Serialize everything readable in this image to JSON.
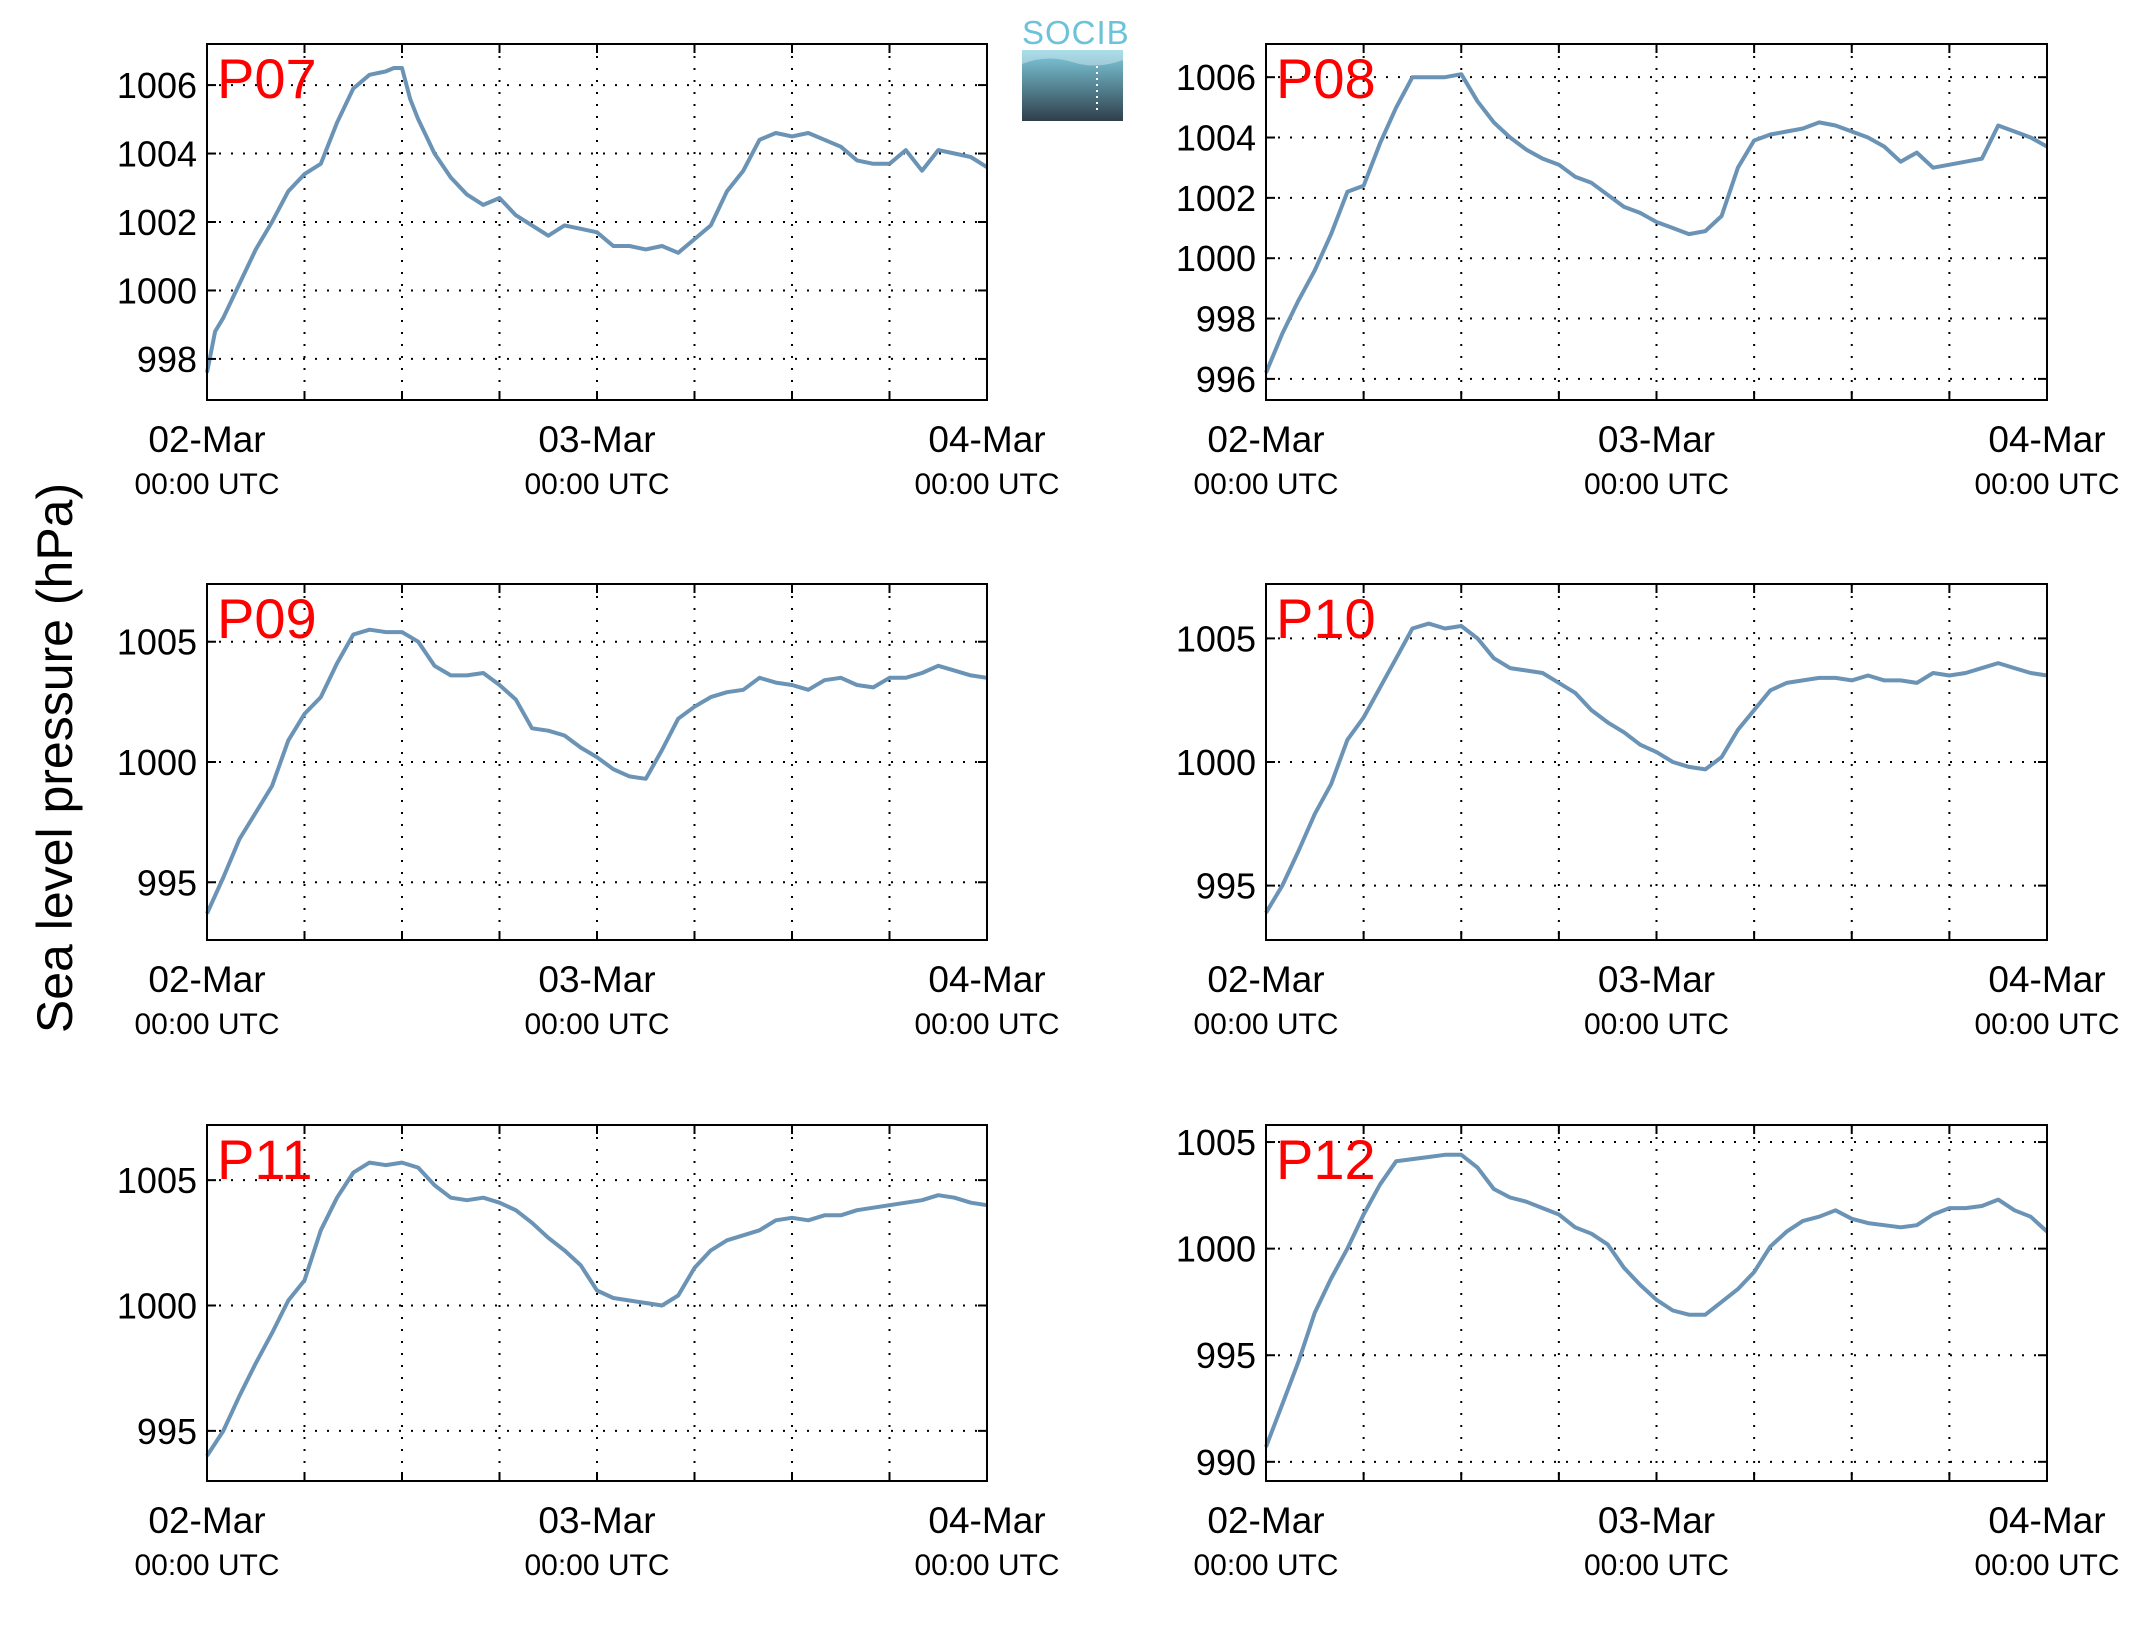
{
  "figure": {
    "ylabel": "Sea level pressure (hPa)",
    "line_color": "#6a93b5",
    "station_label_color": "#ff0000",
    "logo": {
      "text": "SOCIB",
      "text_color": "#6cc3d9",
      "gradient_top": "#7fcde0",
      "gradient_bottom": "#2f3f4a"
    }
  },
  "chart_data": [
    {
      "type": "line",
      "title": "P07",
      "x_ticks": [
        {
          "date": "02-Mar",
          "time": "00:00 UTC"
        },
        {
          "date": "03-Mar",
          "time": "00:00 UTC"
        },
        {
          "date": "04-Mar",
          "time": "00:00 UTC"
        }
      ],
      "xlim_hours": [
        0,
        48
      ],
      "x_grid_hours": [
        6,
        12,
        18,
        24,
        30,
        36,
        42
      ],
      "ylim": [
        996.8,
        1007.2
      ],
      "yticks": [
        998,
        1000,
        1002,
        1004,
        1006
      ],
      "grid": true,
      "series": [
        {
          "x": [
            0,
            0.5,
            1,
            2,
            3,
            4,
            5,
            6,
            7,
            8,
            9,
            10,
            11,
            11.5,
            12,
            12.5,
            13,
            13.5,
            14,
            15,
            16,
            17,
            18,
            19,
            20,
            21,
            22,
            23,
            24,
            25,
            26,
            27,
            28,
            29,
            30,
            31,
            32,
            33,
            34,
            35,
            36,
            37,
            38,
            39,
            40,
            41,
            42,
            43,
            44,
            45,
            46,
            47,
            48
          ],
          "y": [
            997.6,
            998.8,
            999.2,
            1000.2,
            1001.2,
            1002.0,
            1002.9,
            1003.4,
            1003.7,
            1004.9,
            1005.9,
            1006.3,
            1006.4,
            1006.5,
            1006.5,
            1005.6,
            1005.0,
            1004.5,
            1004.0,
            1003.3,
            1002.8,
            1002.5,
            1002.7,
            1002.2,
            1001.9,
            1001.6,
            1001.9,
            1001.8,
            1001.7,
            1001.3,
            1001.3,
            1001.2,
            1001.3,
            1001.1,
            1001.5,
            1001.9,
            1002.9,
            1003.5,
            1004.4,
            1004.6,
            1004.5,
            1004.6,
            1004.4,
            1004.2,
            1003.8,
            1003.7,
            1003.7,
            1004.1,
            1003.5,
            1004.1,
            1004.0,
            1003.9,
            1003.6
          ]
        }
      ]
    },
    {
      "type": "line",
      "title": "P08",
      "x_ticks": [
        {
          "date": "02-Mar",
          "time": "00:00 UTC"
        },
        {
          "date": "03-Mar",
          "time": "00:00 UTC"
        },
        {
          "date": "04-Mar",
          "time": "00:00 UTC"
        }
      ],
      "xlim_hours": [
        0,
        48
      ],
      "x_grid_hours": [
        6,
        12,
        18,
        24,
        30,
        36,
        42
      ],
      "ylim": [
        995.3,
        1007.1
      ],
      "yticks": [
        996,
        998,
        1000,
        1002,
        1004,
        1006
      ],
      "grid": true,
      "series": [
        {
          "x": [
            0,
            1,
            2,
            3,
            4,
            5,
            6,
            7,
            8,
            9,
            10,
            11,
            12,
            13,
            14,
            15,
            16,
            17,
            18,
            19,
            20,
            21,
            22,
            23,
            24,
            25,
            26,
            27,
            28,
            29,
            30,
            31,
            32,
            33,
            34,
            35,
            36,
            37,
            38,
            39,
            40,
            41,
            42,
            43,
            44,
            45,
            46,
            47,
            48
          ],
          "y": [
            996.2,
            997.5,
            998.6,
            999.6,
            1000.8,
            1002.2,
            1002.4,
            1003.8,
            1005.0,
            1006.0,
            1006.0,
            1006.0,
            1006.1,
            1005.2,
            1004.5,
            1004.0,
            1003.6,
            1003.3,
            1003.1,
            1002.7,
            1002.5,
            1002.1,
            1001.7,
            1001.5,
            1001.2,
            1001.0,
            1000.8,
            1000.9,
            1001.4,
            1003.0,
            1003.9,
            1004.1,
            1004.2,
            1004.3,
            1004.5,
            1004.4,
            1004.2,
            1004.0,
            1003.7,
            1003.2,
            1003.5,
            1003.0,
            1003.1,
            1003.2,
            1003.3,
            1004.4,
            1004.2,
            1004.0,
            1003.7
          ]
        }
      ]
    },
    {
      "type": "line",
      "title": "P09",
      "x_ticks": [
        {
          "date": "02-Mar",
          "time": "00:00 UTC"
        },
        {
          "date": "03-Mar",
          "time": "00:00 UTC"
        },
        {
          "date": "04-Mar",
          "time": "00:00 UTC"
        }
      ],
      "xlim_hours": [
        0,
        48
      ],
      "x_grid_hours": [
        6,
        12,
        18,
        24,
        30,
        36,
        42
      ],
      "ylim": [
        992.6,
        1007.4
      ],
      "yticks": [
        995,
        1000,
        1005
      ],
      "grid": true,
      "series": [
        {
          "x": [
            0,
            1,
            2,
            3,
            4,
            5,
            6,
            7,
            8,
            9,
            10,
            11,
            12,
            13,
            14,
            15,
            16,
            17,
            18,
            19,
            20,
            21,
            22,
            23,
            24,
            25,
            26,
            27,
            28,
            29,
            30,
            31,
            32,
            33,
            34,
            35,
            36,
            37,
            38,
            39,
            40,
            41,
            42,
            43,
            44,
            45,
            46,
            47,
            48
          ],
          "y": [
            993.7,
            995.2,
            996.8,
            997.9,
            999.0,
            1000.9,
            1002.0,
            1002.7,
            1004.1,
            1005.3,
            1005.5,
            1005.4,
            1005.4,
            1005.0,
            1004.0,
            1003.6,
            1003.6,
            1003.7,
            1003.2,
            1002.6,
            1001.4,
            1001.3,
            1001.1,
            1000.6,
            1000.2,
            999.7,
            999.4,
            999.3,
            1000.5,
            1001.8,
            1002.3,
            1002.7,
            1002.9,
            1003.0,
            1003.5,
            1003.3,
            1003.2,
            1003.0,
            1003.4,
            1003.5,
            1003.2,
            1003.1,
            1003.5,
            1003.5,
            1003.7,
            1004.0,
            1003.8,
            1003.6,
            1003.5
          ]
        }
      ]
    },
    {
      "type": "line",
      "title": "P10",
      "x_ticks": [
        {
          "date": "02-Mar",
          "time": "00:00 UTC"
        },
        {
          "date": "03-Mar",
          "time": "00:00 UTC"
        },
        {
          "date": "04-Mar",
          "time": "00:00 UTC"
        }
      ],
      "xlim_hours": [
        0,
        48
      ],
      "x_grid_hours": [
        6,
        12,
        18,
        24,
        30,
        36,
        42
      ],
      "ylim": [
        992.8,
        1007.2
      ],
      "yticks": [
        995,
        1000,
        1005
      ],
      "grid": true,
      "series": [
        {
          "x": [
            0,
            1,
            2,
            3,
            4,
            5,
            6,
            7,
            8,
            9,
            10,
            11,
            12,
            13,
            14,
            15,
            16,
            17,
            18,
            19,
            20,
            21,
            22,
            23,
            24,
            25,
            26,
            27,
            28,
            29,
            30,
            31,
            32,
            33,
            34,
            35,
            36,
            37,
            38,
            39,
            40,
            41,
            42,
            43,
            44,
            45,
            46,
            47,
            48
          ],
          "y": [
            993.9,
            995.0,
            996.4,
            997.9,
            999.1,
            1000.9,
            1001.8,
            1003.0,
            1004.2,
            1005.4,
            1005.6,
            1005.4,
            1005.5,
            1005.0,
            1004.2,
            1003.8,
            1003.7,
            1003.6,
            1003.2,
            1002.8,
            1002.1,
            1001.6,
            1001.2,
            1000.7,
            1000.4,
            1000.0,
            999.8,
            999.7,
            1000.2,
            1001.3,
            1002.1,
            1002.9,
            1003.2,
            1003.3,
            1003.4,
            1003.4,
            1003.3,
            1003.5,
            1003.3,
            1003.3,
            1003.2,
            1003.6,
            1003.5,
            1003.6,
            1003.8,
            1004.0,
            1003.8,
            1003.6,
            1003.5
          ]
        }
      ]
    },
    {
      "type": "line",
      "title": "P11",
      "x_ticks": [
        {
          "date": "02-Mar",
          "time": "00:00 UTC"
        },
        {
          "date": "03-Mar",
          "time": "00:00 UTC"
        },
        {
          "date": "04-Mar",
          "time": "00:00 UTC"
        }
      ],
      "xlim_hours": [
        0,
        48
      ],
      "x_grid_hours": [
        6,
        12,
        18,
        24,
        30,
        36,
        42
      ],
      "ylim": [
        993.0,
        1007.2
      ],
      "yticks": [
        995,
        1000,
        1005
      ],
      "grid": true,
      "series": [
        {
          "x": [
            0,
            1,
            2,
            3,
            4,
            5,
            6,
            7,
            8,
            9,
            10,
            11,
            12,
            13,
            14,
            15,
            16,
            17,
            18,
            19,
            20,
            21,
            22,
            23,
            24,
            25,
            26,
            27,
            28,
            29,
            30,
            31,
            32,
            33,
            34,
            35,
            36,
            37,
            38,
            39,
            40,
            41,
            42,
            43,
            44,
            45,
            46,
            47,
            48
          ],
          "y": [
            994.0,
            995.0,
            996.4,
            997.7,
            998.9,
            1000.2,
            1001.0,
            1003.0,
            1004.3,
            1005.3,
            1005.7,
            1005.6,
            1005.7,
            1005.5,
            1004.8,
            1004.3,
            1004.2,
            1004.3,
            1004.1,
            1003.8,
            1003.3,
            1002.7,
            1002.2,
            1001.6,
            1000.6,
            1000.3,
            1000.2,
            1000.1,
            1000.0,
            1000.4,
            1001.5,
            1002.2,
            1002.6,
            1002.8,
            1003.0,
            1003.4,
            1003.5,
            1003.4,
            1003.6,
            1003.6,
            1003.8,
            1003.9,
            1004.0,
            1004.1,
            1004.2,
            1004.4,
            1004.3,
            1004.1,
            1004.0
          ]
        }
      ]
    },
    {
      "type": "line",
      "title": "P12",
      "x_ticks": [
        {
          "date": "02-Mar",
          "time": "00:00 UTC"
        },
        {
          "date": "03-Mar",
          "time": "00:00 UTC"
        },
        {
          "date": "04-Mar",
          "time": "00:00 UTC"
        }
      ],
      "xlim_hours": [
        0,
        48
      ],
      "x_grid_hours": [
        6,
        12,
        18,
        24,
        30,
        36,
        42
      ],
      "ylim": [
        989.1,
        1005.8
      ],
      "yticks": [
        990,
        995,
        1000,
        1005
      ],
      "grid": true,
      "series": [
        {
          "x": [
            0,
            1,
            2,
            3,
            4,
            5,
            6,
            7,
            8,
            9,
            10,
            11,
            12,
            13,
            14,
            15,
            16,
            17,
            18,
            19,
            20,
            21,
            22,
            23,
            24,
            25,
            26,
            27,
            28,
            29,
            30,
            31,
            32,
            33,
            34,
            35,
            36,
            37,
            38,
            39,
            40,
            41,
            42,
            43,
            44,
            45,
            46,
            47,
            48
          ],
          "y": [
            990.7,
            992.7,
            994.7,
            997.0,
            998.6,
            1000.0,
            1001.6,
            1003.0,
            1004.1,
            1004.2,
            1004.3,
            1004.4,
            1004.4,
            1003.8,
            1002.8,
            1002.4,
            1002.2,
            1001.9,
            1001.6,
            1001.0,
            1000.7,
            1000.2,
            999.1,
            998.3,
            997.6,
            997.1,
            996.9,
            996.9,
            997.5,
            998.1,
            998.9,
            1000.1,
            1000.8,
            1001.3,
            1001.5,
            1001.8,
            1001.4,
            1001.2,
            1001.1,
            1001.0,
            1001.1,
            1001.6,
            1001.9,
            1001.9,
            1002.0,
            1002.3,
            1001.8,
            1001.5,
            1000.8
          ]
        }
      ]
    }
  ]
}
